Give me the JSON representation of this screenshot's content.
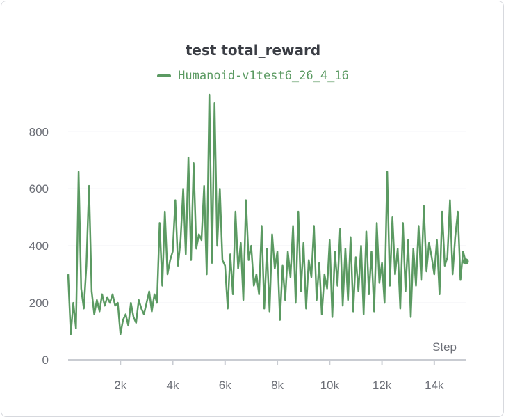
{
  "chart_data": {
    "type": "line",
    "title": "test total_reward",
    "xlabel": "Step",
    "ylabel": "",
    "xlim": [
      0,
      15200
    ],
    "ylim": [
      0,
      930
    ],
    "x_ticks": [
      2000,
      4000,
      6000,
      8000,
      10000,
      12000,
      14000
    ],
    "x_tick_labels": [
      "2k",
      "4k",
      "6k",
      "8k",
      "10k",
      "12k",
      "14k"
    ],
    "y_ticks": [
      0,
      200,
      400,
      600,
      800
    ],
    "y_tick_labels": [
      "0",
      "200",
      "400",
      "600",
      "800"
    ],
    "grid": "horizontal",
    "legend_position": "top-center",
    "color": "#5b9a62",
    "series": [
      {
        "name": "Humanoid-v1test6_26_4_16",
        "x": [
          0,
          100,
          200,
          300,
          400,
          500,
          600,
          700,
          800,
          900,
          1000,
          1100,
          1200,
          1300,
          1400,
          1500,
          1600,
          1700,
          1800,
          1900,
          2000,
          2100,
          2200,
          2300,
          2400,
          2500,
          2600,
          2700,
          2800,
          2900,
          3000,
          3100,
          3200,
          3300,
          3400,
          3500,
          3600,
          3700,
          3800,
          3900,
          4000,
          4100,
          4200,
          4300,
          4400,
          4500,
          4600,
          4700,
          4800,
          4900,
          5000,
          5100,
          5200,
          5300,
          5400,
          5500,
          5600,
          5700,
          5800,
          5900,
          6000,
          6100,
          6200,
          6300,
          6400,
          6500,
          6600,
          6700,
          6800,
          6900,
          7000,
          7100,
          7200,
          7300,
          7400,
          7500,
          7600,
          7700,
          7800,
          7900,
          8000,
          8100,
          8200,
          8300,
          8400,
          8500,
          8600,
          8700,
          8800,
          8900,
          9000,
          9100,
          9200,
          9300,
          9400,
          9500,
          9600,
          9700,
          9800,
          9900,
          10000,
          10100,
          10200,
          10300,
          10400,
          10500,
          10600,
          10700,
          10800,
          10900,
          11000,
          11100,
          11200,
          11300,
          11400,
          11500,
          11600,
          11700,
          11800,
          11900,
          12000,
          12100,
          12200,
          12300,
          12400,
          12500,
          12600,
          12700,
          12800,
          12900,
          13000,
          13100,
          13200,
          13300,
          13400,
          13500,
          13600,
          13700,
          13800,
          13900,
          14000,
          14100,
          14200,
          14300,
          14400,
          14500,
          14600,
          14700,
          14800,
          14900,
          15000,
          15100,
          15200
        ],
        "values": [
          300,
          90,
          200,
          110,
          660,
          250,
          180,
          330,
          610,
          240,
          160,
          210,
          170,
          230,
          190,
          220,
          200,
          230,
          190,
          200,
          90,
          140,
          160,
          120,
          200,
          150,
          130,
          210,
          180,
          160,
          200,
          240,
          170,
          230,
          200,
          480,
          260,
          520,
          300,
          350,
          380,
          560,
          330,
          420,
          600,
          370,
          710,
          350,
          690,
          390,
          440,
          420,
          610,
          300,
          930,
          340,
          900,
          400,
          600,
          350,
          330,
          180,
          370,
          230,
          520,
          320,
          410,
          210,
          560,
          350,
          400,
          260,
          300,
          230,
          470,
          180,
          390,
          170,
          440,
          320,
          380,
          140,
          330,
          210,
          380,
          290,
          470,
          200,
          520,
          240,
          410,
          180,
          350,
          290,
          470,
          210,
          340,
          160,
          300,
          250,
          420,
          150,
          380,
          260,
          460,
          190,
          390,
          210,
          430,
          170,
          360,
          240,
          400,
          160,
          450,
          230,
          380,
          170,
          480,
          270,
          340,
          200,
          660,
          260,
          500,
          300,
          390,
          180,
          480,
          240,
          420,
          150,
          390,
          260,
          470,
          280,
          540,
          310,
          410,
          360,
          300,
          420,
          230,
          520,
          330,
          360,
          560,
          300,
          430,
          520,
          280,
          380,
          345
        ]
      }
    ]
  }
}
